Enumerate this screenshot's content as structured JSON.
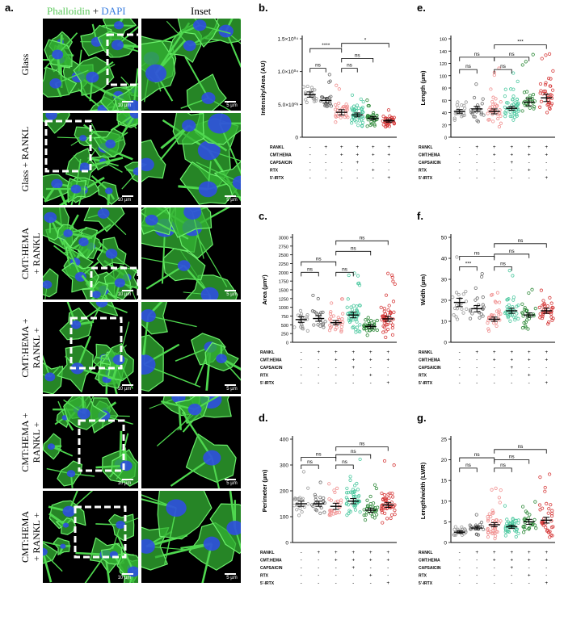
{
  "figure": {
    "panel_a": {
      "letter": "a.",
      "header_left_parts": [
        "Phalloidin",
        " + ",
        "DAPI"
      ],
      "header_colors": [
        "#5ac85a",
        "#000000",
        "#3b7fe0"
      ],
      "header_right": "Inset",
      "rows": [
        {
          "label": "Glass"
        },
        {
          "label": "Glass + RANKL"
        },
        {
          "label": "CMT:HEMA\n+ RANKL"
        },
        {
          "label": "CMT:HEMA +\nRANKL +\nCAPSAICIN"
        },
        {
          "label": "CMT:HEMA +\nRANKL +\nRTX"
        },
        {
          "label": "CMT:HEMA\n+ RANKL +\n5'-IRTX"
        }
      ],
      "scale_main": "10 µm",
      "scale_inset": "5 µm"
    },
    "condition_labels": [
      "RANKL",
      "CMT:HEMA",
      "CAPSAICIN",
      "RTX",
      "5'-IRTX"
    ],
    "condition_matrix": [
      [
        "-",
        "+",
        "+",
        "+",
        "+",
        "+"
      ],
      [
        "-",
        "-",
        "+",
        "+",
        "+",
        "+"
      ],
      [
        "-",
        "-",
        "-",
        "+",
        "-",
        "-"
      ],
      [
        "-",
        "-",
        "-",
        "-",
        "+",
        "-"
      ],
      [
        "-",
        "-",
        "-",
        "-",
        "-",
        "+"
      ]
    ],
    "group_colors": [
      "#9a9a9a",
      "#6f6f6f",
      "#f08f8f",
      "#4dc9a0",
      "#2f8a3a",
      "#d63a3a"
    ]
  },
  "chart_data": [
    {
      "id": "b",
      "letter": "b.",
      "type": "scatter",
      "ylabel": "Intensity/Area (AU)",
      "yticks": [
        "0",
        "5.0×10⁰³",
        "1.0×10⁰⁴",
        "1.5×10⁰⁴"
      ],
      "ylim": [
        0,
        15000
      ],
      "means": [
        6500,
        5600,
        3800,
        3400,
        2900,
        2500
      ],
      "sem": [
        400,
        400,
        400,
        300,
        250,
        200
      ],
      "spread": [
        1500,
        1300,
        1300,
        1500,
        1000,
        900
      ],
      "n": [
        20,
        20,
        30,
        45,
        30,
        35
      ],
      "brackets": [
        {
          "from": 0,
          "to": 1,
          "y": 10500,
          "label": "ns"
        },
        {
          "from": 0,
          "to": 2,
          "y": 13500,
          "label": "****"
        },
        {
          "from": 2,
          "to": 3,
          "y": 10500,
          "label": "ns"
        },
        {
          "from": 2,
          "to": 4,
          "y": 12000,
          "label": "ns"
        },
        {
          "from": 2,
          "to": 5,
          "y": 14300,
          "label": "*"
        }
      ]
    },
    {
      "id": "e",
      "letter": "e.",
      "type": "scatter",
      "ylabel": "Length (µm)",
      "yticks": [
        "0",
        "20",
        "40",
        "60",
        "80",
        "100",
        "120",
        "140",
        "160"
      ],
      "ylim": [
        0,
        160
      ],
      "means": [
        42,
        46,
        42,
        47,
        57,
        64
      ],
      "sem": [
        3,
        4,
        4,
        3,
        6,
        6
      ],
      "spread": [
        16,
        18,
        22,
        18,
        25,
        28
      ],
      "n": [
        20,
        20,
        35,
        45,
        25,
        35
      ],
      "brackets": [
        {
          "from": 0,
          "to": 1,
          "y": 110,
          "label": "ns"
        },
        {
          "from": 0,
          "to": 2,
          "y": 130,
          "label": "ns"
        },
        {
          "from": 2,
          "to": 3,
          "y": 110,
          "label": "ns"
        },
        {
          "from": 2,
          "to": 4,
          "y": 130,
          "label": "ns"
        },
        {
          "from": 2,
          "to": 5,
          "y": 150,
          "label": "***"
        }
      ]
    },
    {
      "id": "c",
      "letter": "c.",
      "type": "scatter",
      "ylabel": "Area (µm²)",
      "yticks": [
        "0",
        "250",
        "500",
        "750",
        "1000",
        "1250",
        "1500",
        "1750",
        "2000",
        "2250",
        "2500",
        "2750",
        "3000"
      ],
      "ylim": [
        0,
        3000
      ],
      "means": [
        650,
        680,
        560,
        780,
        450,
        670
      ],
      "sem": [
        80,
        80,
        60,
        80,
        50,
        70
      ],
      "spread": [
        300,
        300,
        250,
        420,
        220,
        430
      ],
      "n": [
        20,
        20,
        30,
        50,
        30,
        50
      ],
      "brackets": [
        {
          "from": 0,
          "to": 1,
          "y": 2000,
          "label": "ns"
        },
        {
          "from": 0,
          "to": 2,
          "y": 2300,
          "label": "ns"
        },
        {
          "from": 2,
          "to": 3,
          "y": 2000,
          "label": "ns"
        },
        {
          "from": 2,
          "to": 4,
          "y": 2600,
          "label": "ns"
        },
        {
          "from": 2,
          "to": 5,
          "y": 2900,
          "label": "ns"
        }
      ]
    },
    {
      "id": "f",
      "letter": "f.",
      "type": "scatter",
      "ylabel": "Width (µm)",
      "yticks": [
        "0",
        "10",
        "20",
        "30",
        "40",
        "50"
      ],
      "ylim": [
        0,
        50
      ],
      "means": [
        19,
        16,
        11,
        15,
        13,
        15
      ],
      "sem": [
        2,
        1.5,
        1,
        1.2,
        1,
        1.2
      ],
      "spread": [
        7,
        6,
        4,
        6,
        5,
        6
      ],
      "n": [
        20,
        20,
        30,
        35,
        25,
        35
      ],
      "brackets": [
        {
          "from": 0,
          "to": 1,
          "y": 36,
          "label": "***"
        },
        {
          "from": 0,
          "to": 2,
          "y": 41,
          "label": "ns"
        },
        {
          "from": 2,
          "to": 3,
          "y": 36,
          "label": "ns"
        },
        {
          "from": 2,
          "to": 4,
          "y": 42,
          "label": "ns"
        },
        {
          "from": 2,
          "to": 5,
          "y": 47,
          "label": "ns"
        }
      ]
    },
    {
      "id": "d",
      "letter": "d.",
      "type": "scatter",
      "ylabel": "Perimeter (µm)",
      "yticks": [
        "0",
        "100",
        "200",
        "300",
        "400"
      ],
      "ylim": [
        0,
        400
      ],
      "means": [
        150,
        150,
        140,
        160,
        125,
        145
      ],
      "sem": [
        10,
        10,
        12,
        10,
        8,
        9
      ],
      "spread": [
        40,
        40,
        45,
        60,
        40,
        55
      ],
      "n": [
        20,
        20,
        25,
        45,
        30,
        45
      ],
      "brackets": [
        {
          "from": 0,
          "to": 1,
          "y": 300,
          "label": "ns"
        },
        {
          "from": 0,
          "to": 2,
          "y": 330,
          "label": "ns"
        },
        {
          "from": 2,
          "to": 3,
          "y": 300,
          "label": "ns"
        },
        {
          "from": 2,
          "to": 4,
          "y": 340,
          "label": "ns"
        },
        {
          "from": 2,
          "to": 5,
          "y": 370,
          "label": "ns"
        }
      ]
    },
    {
      "id": "g",
      "letter": "g.",
      "type": "scatter",
      "ylabel": "Length/width (LWR)",
      "yticks": [
        "0",
        "5",
        "10",
        "15",
        "20",
        "25"
      ],
      "ylim": [
        0,
        25
      ],
      "means": [
        2.5,
        3.5,
        4.3,
        3.8,
        5,
        5.4
      ],
      "sem": [
        0.3,
        0.4,
        0.5,
        0.4,
        0.6,
        0.7
      ],
      "spread": [
        1,
        1.5,
        3,
        2,
        2.5,
        3.5
      ],
      "n": [
        20,
        20,
        40,
        45,
        25,
        35
      ],
      "brackets": [
        {
          "from": 0,
          "to": 1,
          "y": 18,
          "label": "ns"
        },
        {
          "from": 0,
          "to": 2,
          "y": 20.5,
          "label": "ns"
        },
        {
          "from": 2,
          "to": 3,
          "y": 18,
          "label": "ns"
        },
        {
          "from": 2,
          "to": 4,
          "y": 20,
          "label": "ns"
        },
        {
          "from": 2,
          "to": 5,
          "y": 22.5,
          "label": "ns"
        }
      ]
    }
  ]
}
